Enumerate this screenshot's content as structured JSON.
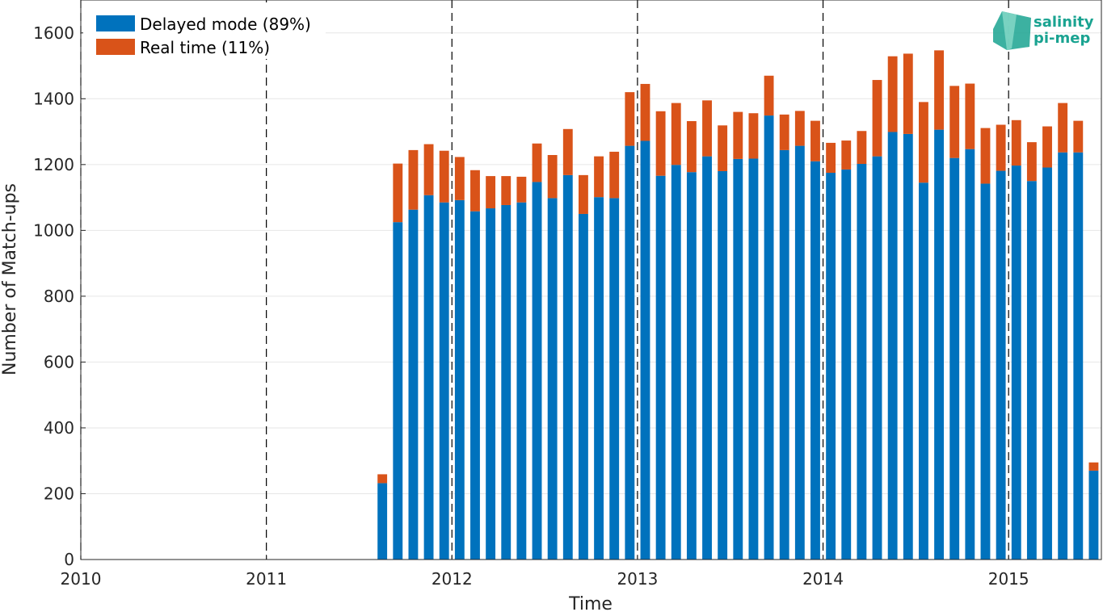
{
  "chart_data": {
    "type": "bar",
    "stacked": true,
    "xlabel": "Time",
    "ylabel": "Number of Match-ups",
    "xlim": [
      2010,
      2015.5
    ],
    "ylim": [
      0,
      1700
    ],
    "x_ticks": [
      "2010",
      "2011",
      "2012",
      "2013",
      "2014",
      "2015"
    ],
    "y_ticks": [
      0,
      200,
      400,
      600,
      800,
      1000,
      1200,
      1400,
      1600
    ],
    "year_boundaries_dashed": [
      2010,
      2011,
      2012,
      2013,
      2014,
      2015
    ],
    "grid": "horizontal",
    "legend_position": "top-left",
    "x": [
      "2011-08",
      "2011-09",
      "2011-10",
      "2011-11",
      "2011-12",
      "2012-01",
      "2012-02",
      "2012-03",
      "2012-04",
      "2012-05",
      "2012-06",
      "2012-07",
      "2012-08",
      "2012-09",
      "2012-10",
      "2012-11",
      "2012-12",
      "2013-01",
      "2013-02",
      "2013-03",
      "2013-04",
      "2013-05",
      "2013-06",
      "2013-07",
      "2013-08",
      "2013-09",
      "2013-10",
      "2013-11",
      "2013-12",
      "2014-01",
      "2014-02",
      "2014-03",
      "2014-04",
      "2014-05",
      "2014-06",
      "2014-07",
      "2014-08",
      "2014-09",
      "2014-10",
      "2014-11",
      "2014-12",
      "2015-01",
      "2015-02",
      "2015-03",
      "2015-04",
      "2015-05",
      "2015-06"
    ],
    "series": [
      {
        "name": "Delayed mode (89%)",
        "color": "#0072BD",
        "values": [
          232,
          1025,
          1063,
          1107,
          1085,
          1092,
          1058,
          1067,
          1077,
          1085,
          1147,
          1098,
          1168,
          1050,
          1101,
          1098,
          1257,
          1272,
          1166,
          1199,
          1177,
          1225,
          1180,
          1217,
          1218,
          1349,
          1244,
          1257,
          1210,
          1175,
          1185,
          1202,
          1225,
          1299,
          1293,
          1145,
          1306,
          1220,
          1247,
          1142,
          1181,
          1197,
          1150,
          1191,
          1237,
          1237,
          270
        ]
      },
      {
        "name": "Real time (11%)",
        "color": "#D95319",
        "values": [
          27,
          178,
          181,
          155,
          157,
          131,
          125,
          98,
          88,
          78,
          117,
          131,
          140,
          118,
          124,
          141,
          163,
          173,
          196,
          188,
          155,
          170,
          139,
          143,
          138,
          121,
          108,
          106,
          123,
          91,
          88,
          100,
          232,
          230,
          244,
          245,
          241,
          219,
          199,
          169,
          140,
          138,
          118,
          125,
          150,
          96,
          25
        ]
      }
    ]
  },
  "logo": {
    "line1": "salinity",
    "line2": "pi-mep"
  }
}
